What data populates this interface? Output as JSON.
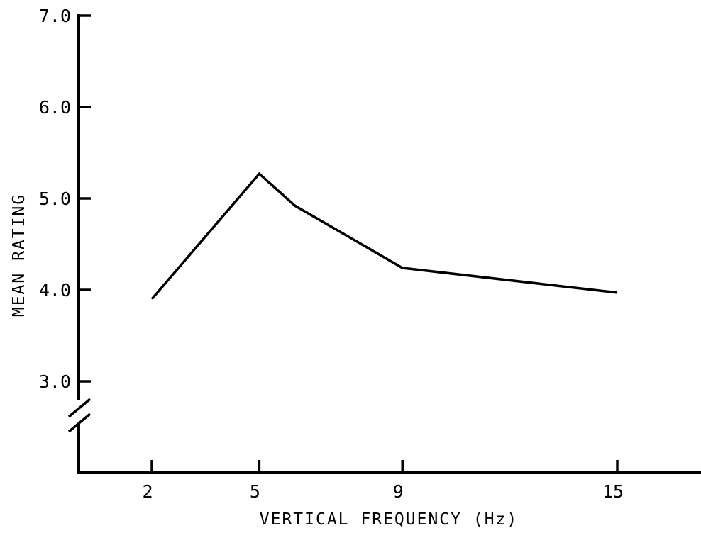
{
  "chart_data": {
    "type": "line",
    "title": "",
    "xlabel": "VERTICAL FREQUENCY (Hz)",
    "ylabel": "MEAN RATING",
    "x_ticks": [
      {
        "value": 2,
        "label": "2"
      },
      {
        "value": 5,
        "label": "5"
      },
      {
        "value": 9,
        "label": "9"
      },
      {
        "value": 15,
        "label": "15"
      }
    ],
    "y_ticks": [
      {
        "value": 3.0,
        "label": "3.0"
      },
      {
        "value": 4.0,
        "label": "4.0"
      },
      {
        "value": 5.0,
        "label": "5.0"
      },
      {
        "value": 6.0,
        "label": "6.0"
      },
      {
        "value": 7.0,
        "label": "7.0"
      }
    ],
    "ylim": [
      3.0,
      7.0
    ],
    "y_axis_break": true,
    "grid": false,
    "series": [
      {
        "x": [
          2,
          5,
          6,
          9,
          15
        ],
        "y": [
          3.9,
          5.27,
          4.92,
          4.24,
          3.97
        ]
      }
    ]
  }
}
